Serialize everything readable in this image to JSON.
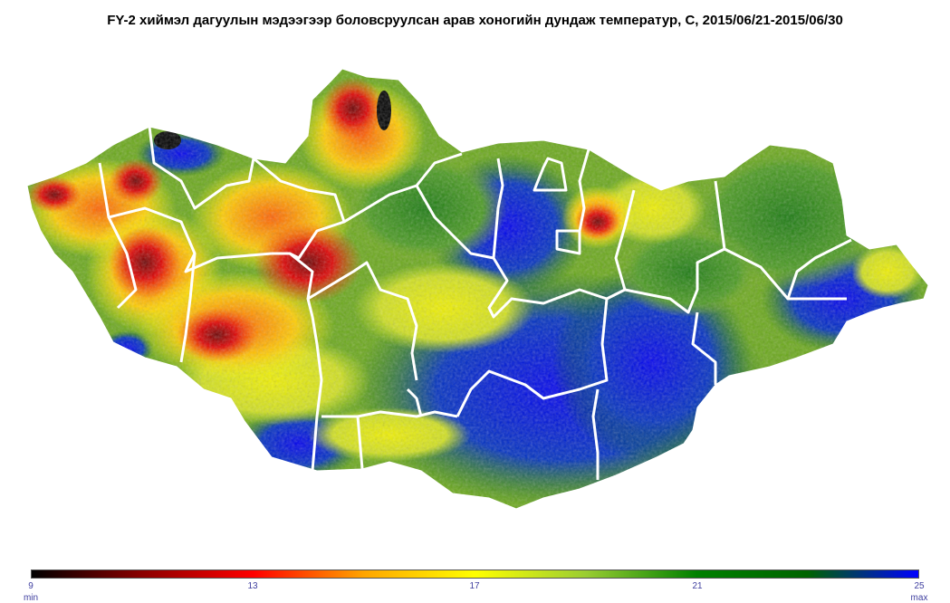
{
  "title": "FY-2 хиймэл дагуулын мэдээгээр боловсруулсан арав хоногийн дундаж температур, C, 2015/06/21-2015/06/30",
  "colorbar": {
    "min_value": "9",
    "max_value": "25",
    "ticks": [
      "9",
      "13",
      "17",
      "21",
      "25"
    ],
    "min_label": "min",
    "max_label": "max",
    "colors": [
      "#000000",
      "#8b0000",
      "#ff0000",
      "#ffa500",
      "#ffff00",
      "#9acd32",
      "#008000",
      "#006400",
      "#0000ff"
    ]
  }
}
